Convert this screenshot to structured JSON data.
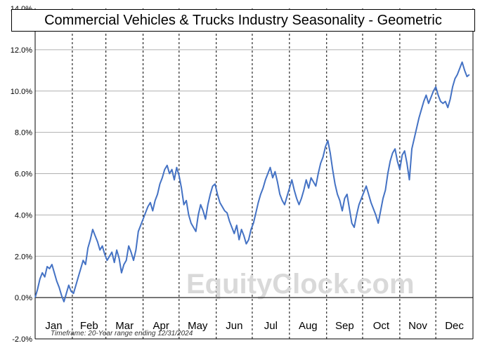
{
  "title": "Commercial Vehicles & Trucks Industry Seasonality - Geometric",
  "footnote": "Timeframe: 20-Year range ending 12/31/2024",
  "watermark": "EquityClock.com",
  "colors": {
    "line": "#4472c4",
    "grid": "#b0b0b0",
    "axis": "#000000"
  },
  "chart_data": {
    "type": "line",
    "xlabel": "",
    "ylabel": "",
    "ylim": [
      -2.0,
      14.0
    ],
    "y_ticks": [
      "14.0%",
      "12.0%",
      "10.0%",
      "8.0%",
      "6.0%",
      "4.0%",
      "2.0%",
      "0.0%",
      "-2.0%"
    ],
    "x_month_labels": [
      "Jan",
      "Feb",
      "Mar",
      "Apr",
      "May",
      "Jun",
      "Jul",
      "Aug",
      "Sep",
      "Oct",
      "Nov",
      "Dec"
    ],
    "grid": true,
    "series": [
      {
        "x_day_of_year": [
          1,
          3,
          5,
          7,
          9,
          11,
          13,
          15,
          17,
          19,
          21,
          23,
          25,
          27,
          29,
          31,
          33,
          35,
          37,
          39,
          41,
          43,
          45,
          47,
          49,
          51,
          53,
          55,
          57,
          59,
          61,
          63,
          65,
          67,
          69,
          71,
          73,
          75,
          77,
          79,
          81,
          83,
          85,
          87,
          89,
          91,
          93,
          95,
          97,
          99,
          101,
          103,
          105,
          107,
          109,
          111,
          113,
          115,
          117,
          119,
          121,
          123,
          125,
          127,
          129,
          131,
          133,
          135,
          137,
          139,
          141,
          143,
          145,
          147,
          149,
          151,
          153,
          155,
          157,
          159,
          161,
          163,
          165,
          167,
          169,
          171,
          173,
          175,
          177,
          179,
          181,
          183,
          185,
          187,
          189,
          191,
          193,
          195,
          197,
          199,
          201,
          203,
          205,
          207,
          209,
          211,
          213,
          215,
          217,
          219,
          221,
          223,
          225,
          227,
          229,
          231,
          233,
          235,
          237,
          239,
          241,
          243,
          245,
          247,
          249,
          251,
          253,
          255,
          257,
          259,
          261,
          263,
          265,
          267,
          269,
          271,
          273,
          275,
          277,
          279,
          281,
          283,
          285,
          287,
          289,
          291,
          293,
          295,
          297,
          299,
          301,
          303,
          305,
          307,
          309,
          311,
          313,
          315,
          317,
          319,
          321,
          323,
          325,
          327,
          329,
          331,
          333,
          335,
          337,
          339,
          341,
          343,
          345,
          347,
          349,
          351,
          353,
          355,
          357,
          359,
          361,
          363,
          365
        ],
        "values": [
          0.0,
          0.4,
          0.9,
          1.2,
          1.0,
          1.5,
          1.4,
          1.6,
          1.2,
          0.8,
          0.5,
          0.1,
          -0.2,
          0.2,
          0.6,
          0.3,
          0.2,
          0.6,
          1.0,
          1.4,
          1.8,
          1.6,
          2.4,
          2.8,
          3.3,
          3.0,
          2.7,
          2.3,
          2.5,
          2.1,
          1.8,
          2.0,
          2.2,
          1.7,
          2.3,
          1.9,
          1.2,
          1.6,
          1.8,
          2.5,
          2.2,
          1.8,
          2.3,
          3.2,
          3.5,
          3.8,
          4.1,
          4.4,
          4.6,
          4.2,
          4.7,
          5.0,
          5.5,
          5.8,
          6.2,
          6.4,
          6.0,
          6.2,
          5.7,
          6.3,
          5.9,
          5.3,
          4.5,
          4.7,
          4.0,
          3.6,
          3.4,
          3.2,
          4.0,
          4.5,
          4.2,
          3.8,
          4.5,
          5.0,
          5.4,
          5.5,
          5.0,
          4.6,
          4.4,
          4.2,
          4.1,
          3.7,
          3.4,
          3.1,
          3.5,
          2.8,
          3.3,
          3.0,
          2.6,
          2.8,
          3.3,
          3.6,
          4.1,
          4.6,
          5.0,
          5.3,
          5.7,
          6.0,
          6.3,
          5.8,
          6.1,
          5.6,
          5.0,
          4.7,
          4.5,
          4.9,
          5.3,
          5.7,
          5.2,
          4.8,
          4.5,
          4.8,
          5.2,
          5.7,
          5.3,
          5.8,
          5.6,
          5.4,
          6.0,
          6.5,
          6.8,
          7.3,
          7.6,
          7.0,
          6.2,
          5.5,
          5.0,
          4.7,
          4.2,
          4.8,
          5.0,
          4.3,
          3.6,
          3.4,
          4.0,
          4.5,
          4.8,
          5.1,
          5.4,
          5.0,
          4.6,
          4.3,
          4.0,
          3.6,
          4.2,
          4.8,
          5.2,
          6.0,
          6.6,
          7.0,
          7.2,
          6.6,
          6.2,
          6.9,
          7.1,
          6.5,
          5.7,
          7.2,
          7.7,
          8.2,
          8.7,
          9.1,
          9.5,
          9.8,
          9.4,
          9.7,
          10.0,
          10.2,
          9.8,
          9.5,
          9.4,
          9.5,
          9.2,
          9.6,
          10.2,
          10.6,
          10.8,
          11.1,
          11.4,
          11.0,
          10.7,
          10.8
        ]
      }
    ]
  }
}
